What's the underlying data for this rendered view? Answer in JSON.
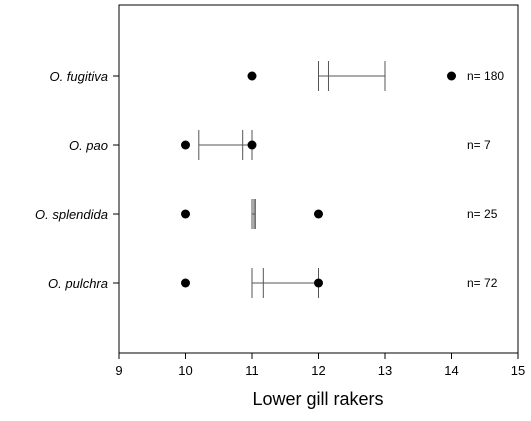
{
  "chart_data": {
    "type": "scatter",
    "title": "",
    "xlabel": "Lower gill rakers",
    "ylabel": "",
    "xlim": [
      9,
      15
    ],
    "xticks": [
      9,
      10,
      11,
      12,
      13,
      14,
      15
    ],
    "grid": false,
    "categories": [
      "O. fugitiva",
      "O. pao",
      "O. splendida",
      "O. pulchra"
    ],
    "series": [
      {
        "category": "O. fugitiva",
        "min": 11,
        "max": 14,
        "mean": 12.15,
        "sd_low": 12.0,
        "sd_high": 13.0,
        "n_label": "n= 180"
      },
      {
        "category": "O. pao",
        "min": 10,
        "max": 11,
        "mean": 10.86,
        "sd_low": 10.2,
        "sd_high": 11.0,
        "n_label": "n= 7"
      },
      {
        "category": "O. splendida",
        "min": 10,
        "max": 12,
        "mean": 11.03,
        "sd_low": 11.0,
        "sd_high": 11.05,
        "n_label": "n= 25"
      },
      {
        "category": "O. pulchra",
        "min": 10,
        "max": 12,
        "mean": 11.17,
        "sd_low": 11.0,
        "sd_high": 12.0,
        "n_label": "n= 72"
      }
    ]
  }
}
